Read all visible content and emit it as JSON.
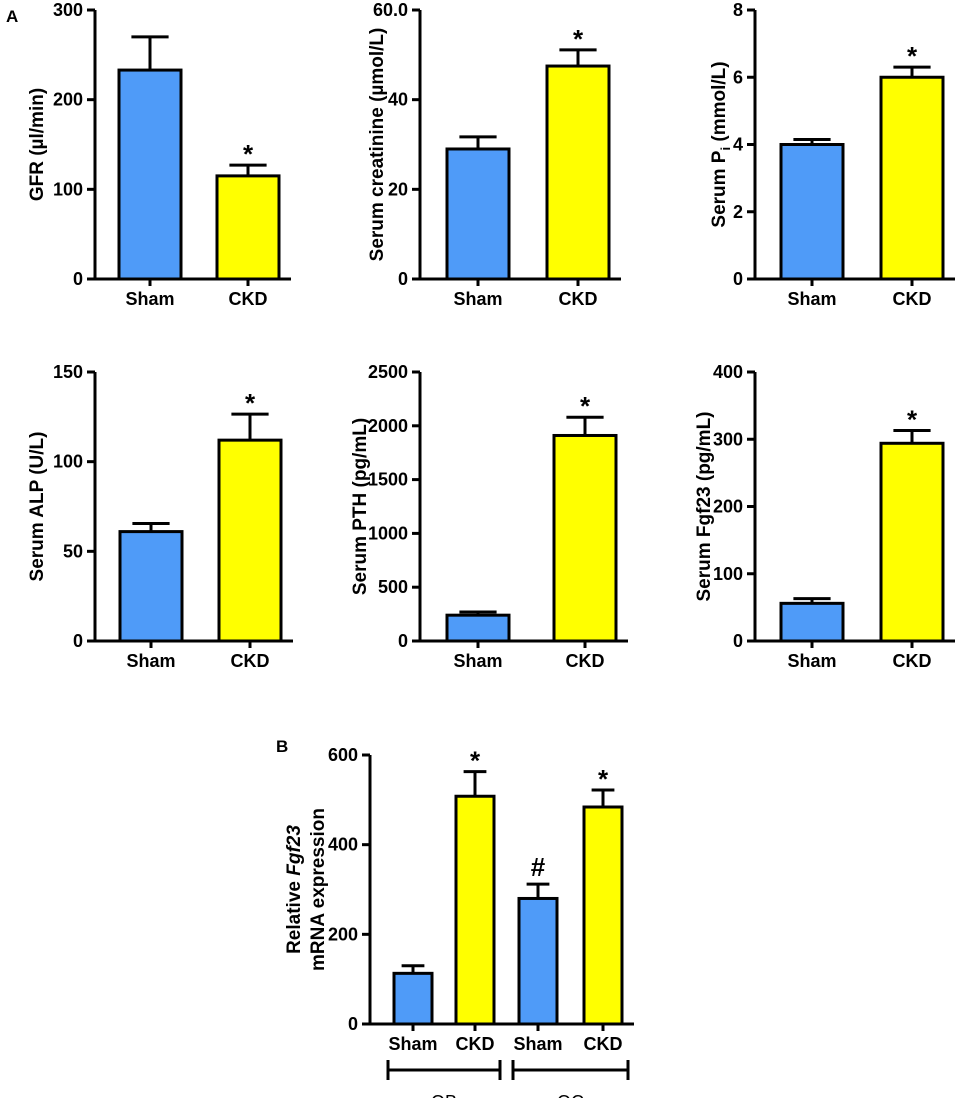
{
  "panel_labels": [
    "A",
    "B"
  ],
  "colors": {
    "sham": "#4f9bf8",
    "ckd": "#ffff00",
    "axis": "#000000"
  },
  "chart_data": [
    {
      "type": "bar",
      "ylabel": "GFR (µl/min)",
      "categories": [
        "Sham",
        "CKD"
      ],
      "values": [
        233,
        115
      ],
      "errors": [
        37,
        12
      ],
      "significance": [
        "",
        "*"
      ],
      "ylim": [
        0,
        300
      ],
      "yticks": [
        0,
        100,
        200,
        300
      ]
    },
    {
      "type": "bar",
      "ylabel": "Serum creatinine (µmol/L)",
      "categories": [
        "Sham",
        "CKD"
      ],
      "values": [
        29,
        47.5
      ],
      "errors": [
        2.7,
        3.6
      ],
      "significance": [
        "",
        "*"
      ],
      "ylim": [
        0,
        60
      ],
      "yticks": [
        0,
        20,
        40,
        60
      ],
      "yticklabels": [
        "0",
        "20",
        "40",
        "60.0"
      ]
    },
    {
      "type": "bar",
      "ylabel": "Serum Pi (mmol/L)",
      "ylabel_main": "Serum P",
      "ylabel_sub": "i",
      "ylabel_rest": " (mmol/L)",
      "categories": [
        "Sham",
        "CKD"
      ],
      "values": [
        4.0,
        6.0
      ],
      "errors": [
        0.15,
        0.3
      ],
      "significance": [
        "",
        "*"
      ],
      "ylim": [
        0,
        8
      ],
      "yticks": [
        0,
        2,
        4,
        6,
        8
      ]
    },
    {
      "type": "bar",
      "ylabel": "Serum ALP (U/L)",
      "categories": [
        "Sham",
        "CKD"
      ],
      "values": [
        61,
        112
      ],
      "errors": [
        4.5,
        14.5
      ],
      "significance": [
        "",
        "*"
      ],
      "ylim": [
        0,
        150
      ],
      "yticks": [
        0,
        50,
        100,
        150
      ]
    },
    {
      "type": "bar",
      "ylabel": "Serum PTH (pg/mL)",
      "categories": [
        "Sham",
        "CKD"
      ],
      "values": [
        240,
        1910
      ],
      "errors": [
        30,
        170
      ],
      "significance": [
        "",
        "*"
      ],
      "ylim": [
        0,
        2500
      ],
      "yticks": [
        0,
        500,
        1000,
        1500,
        2000,
        2500
      ]
    },
    {
      "type": "bar",
      "ylabel": "Serum Fgf23 (pg/mL)",
      "categories": [
        "Sham",
        "CKD"
      ],
      "values": [
        56,
        294
      ],
      "errors": [
        7,
        19
      ],
      "significance": [
        "",
        "*"
      ],
      "ylim": [
        0,
        400
      ],
      "yticks": [
        0,
        100,
        200,
        300,
        400
      ]
    },
    {
      "type": "bar",
      "ylabel_line1_prefix": "Relative ",
      "ylabel_line1_italic": "Fgf23",
      "ylabel_line2": "mRNA expression",
      "ylabel": "Relative Fgf23 mRNA expression",
      "categories": [
        "Sham",
        "CKD",
        "Sham",
        "CKD"
      ],
      "values": [
        113,
        508,
        280,
        484
      ],
      "errors": [
        17,
        55,
        32,
        38
      ],
      "significance": [
        "",
        "*",
        "#",
        "*"
      ],
      "groups": [
        {
          "label": "OB",
          "from": 0,
          "to": 1
        },
        {
          "label": "OC",
          "from": 2,
          "to": 3
        }
      ],
      "ylim": [
        0,
        600
      ],
      "yticks": [
        0,
        200,
        400,
        600
      ]
    }
  ]
}
